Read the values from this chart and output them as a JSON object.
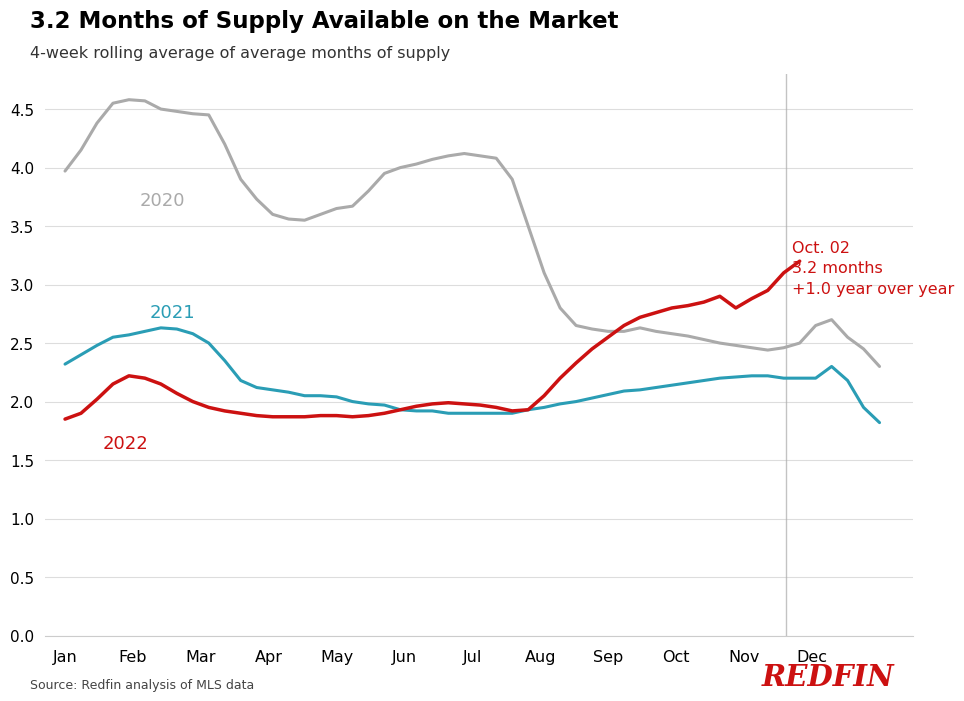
{
  "title": "3.2 Months of Supply Available on the Market",
  "subtitle": "4-week rolling average of average months of supply",
  "source": "Source: Redfin analysis of MLS data",
  "ylim": [
    0.0,
    4.8
  ],
  "yticks": [
    0.0,
    0.5,
    1.0,
    1.5,
    2.0,
    2.5,
    3.0,
    3.5,
    4.0,
    4.5
  ],
  "months": [
    "Jan",
    "Feb",
    "Mar",
    "Apr",
    "May",
    "Jun",
    "Jul",
    "Aug",
    "Sep",
    "Oct",
    "Nov",
    "Dec"
  ],
  "annotation": {
    "date": "Oct. 02",
    "value": "3.2 months",
    "change": "+1.0 year over year"
  },
  "color_2020": "#aaaaaa",
  "color_2021": "#2a9db5",
  "color_2022": "#cc1111",
  "label_2020": "2020",
  "label_2021": "2021",
  "label_2022": "2022",
  "vline_color": "#aaaaaa",
  "redfin_color": "#cc1111",
  "data_2020": [
    3.97,
    4.15,
    4.38,
    4.55,
    4.58,
    4.57,
    4.5,
    4.48,
    4.46,
    4.45,
    4.2,
    3.9,
    3.73,
    3.6,
    3.56,
    3.55,
    3.6,
    3.65,
    3.67,
    3.8,
    3.95,
    4.0,
    4.03,
    4.07,
    4.1,
    4.12,
    4.1,
    4.08,
    3.9,
    3.5,
    3.1,
    2.8,
    2.65,
    2.62,
    2.6,
    2.6,
    2.63,
    2.6,
    2.58,
    2.56,
    2.53,
    2.5,
    2.48,
    2.46,
    2.44,
    2.46,
    2.5,
    2.65,
    2.7,
    2.55,
    2.45,
    2.3
  ],
  "data_2021": [
    2.32,
    2.4,
    2.48,
    2.55,
    2.57,
    2.6,
    2.63,
    2.62,
    2.58,
    2.5,
    2.35,
    2.18,
    2.12,
    2.1,
    2.08,
    2.05,
    2.05,
    2.04,
    2.0,
    1.98,
    1.97,
    1.93,
    1.92,
    1.92,
    1.9,
    1.9,
    1.9,
    1.9,
    1.9,
    1.93,
    1.95,
    1.98,
    2.0,
    2.03,
    2.06,
    2.09,
    2.1,
    2.12,
    2.14,
    2.16,
    2.18,
    2.2,
    2.21,
    2.22,
    2.22,
    2.2,
    2.2,
    2.2,
    2.3,
    2.18,
    1.95,
    1.82
  ],
  "data_2022": [
    1.85,
    1.9,
    2.02,
    2.15,
    2.22,
    2.2,
    2.15,
    2.07,
    2.0,
    1.95,
    1.92,
    1.9,
    1.88,
    1.87,
    1.87,
    1.87,
    1.88,
    1.88,
    1.87,
    1.88,
    1.9,
    1.93,
    1.96,
    1.98,
    1.99,
    1.98,
    1.97,
    1.95,
    1.92,
    1.93,
    2.05,
    2.2,
    2.33,
    2.45,
    2.55,
    2.65,
    2.72,
    2.76,
    2.8,
    2.82,
    2.85,
    2.9,
    2.8,
    2.88,
    2.95,
    3.1,
    3.2,
    null,
    null,
    null,
    null,
    null
  ],
  "n_points": 52,
  "vline_week": 46
}
